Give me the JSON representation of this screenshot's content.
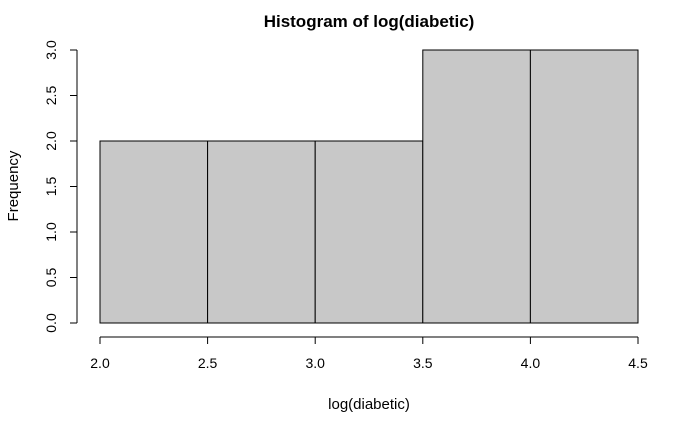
{
  "chart_data": {
    "type": "bar",
    "title": "Histogram of log(diabetic)",
    "xlabel": "log(diabetic)",
    "ylabel": "Frequency",
    "bins": [
      {
        "x0": 2.0,
        "x1": 2.5,
        "count": 2
      },
      {
        "x0": 2.5,
        "x1": 3.0,
        "count": 2
      },
      {
        "x0": 3.0,
        "x1": 3.5,
        "count": 2
      },
      {
        "x0": 3.5,
        "x1": 4.0,
        "count": 3
      },
      {
        "x0": 4.0,
        "x1": 4.5,
        "count": 3
      }
    ],
    "xlim": [
      2.0,
      4.5
    ],
    "ylim": [
      0.0,
      3.0
    ],
    "x_ticks": [
      "2.0",
      "2.5",
      "3.0",
      "3.5",
      "4.0",
      "4.5"
    ],
    "y_ticks": [
      "0.0",
      "0.5",
      "1.0",
      "1.5",
      "2.0",
      "2.5",
      "3.0"
    ],
    "bar_color": "#c8c8c8",
    "grid": false
  }
}
